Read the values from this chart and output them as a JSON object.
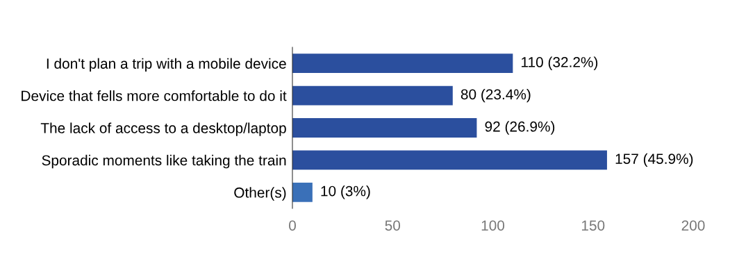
{
  "chart_data": {
    "type": "bar",
    "orientation": "horizontal",
    "categories": [
      "I don't plan a trip with a mobile device",
      "Device that fells more comfortable to do it",
      "The lack of access to a desktop/laptop",
      "Sporadic moments like taking the train",
      "Other(s)"
    ],
    "values": [
      110,
      80,
      92,
      157,
      10
    ],
    "colors": [
      "#2b4f9e",
      "#2b4f9e",
      "#2b4f9e",
      "#2b4f9e",
      "#3a70b8"
    ],
    "value_labels": [
      "110 (32.2%)",
      "80 (23.4%)",
      "92 (26.9%)",
      "157 (45.9%)",
      "10 (3%)"
    ],
    "xlim": [
      0,
      200
    ],
    "xticks": [
      0,
      50,
      100,
      150,
      200
    ],
    "grid": false
  }
}
